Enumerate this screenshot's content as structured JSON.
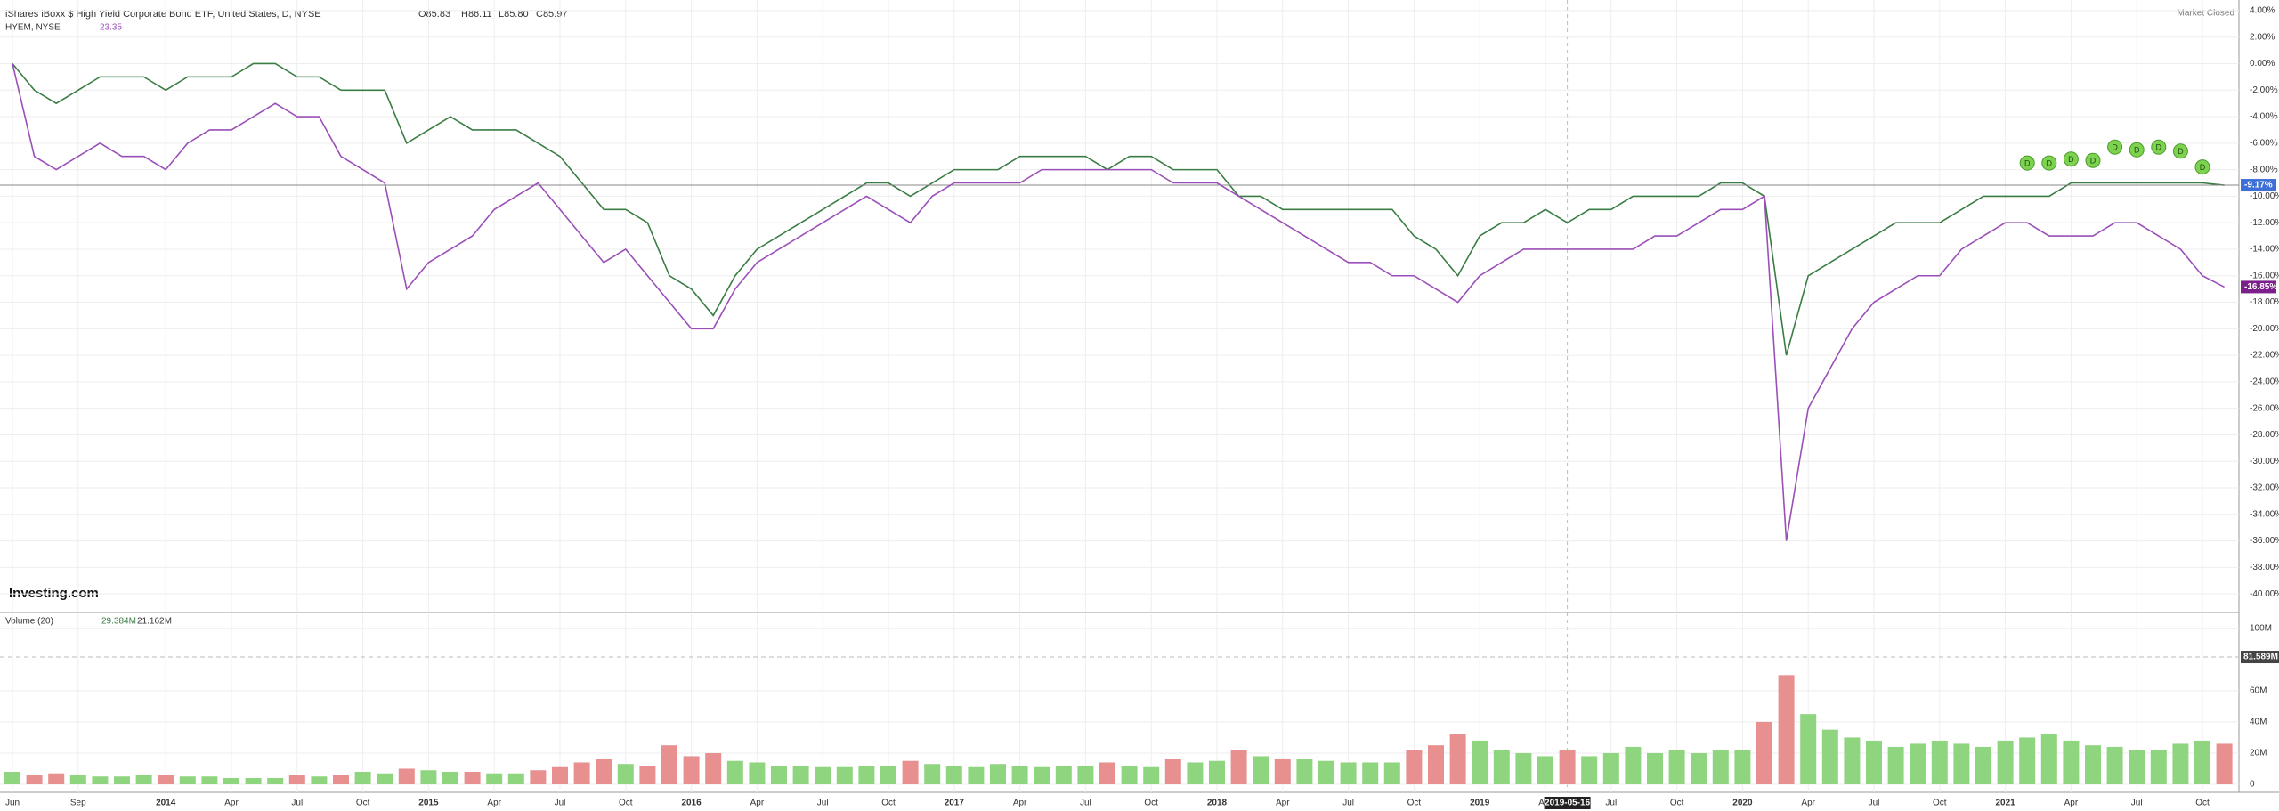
{
  "header": {
    "title": "iShares iBoxx $ High Yield Corporate Bond ETF, United States, D, NYSE",
    "open": "O85.83",
    "high": "H86.11",
    "low": "L85.80",
    "close": "C85.97",
    "compare_name": "HYEM, NYSE",
    "compare_value": "23.35",
    "status": "Market Closed",
    "logo": "Investing.com",
    "crosshair_date": "2019-05-16"
  },
  "chart_data": [
    {
      "type": "line",
      "grid": true,
      "categories": [
        "Jun",
        null,
        null,
        "Sep",
        null,
        null,
        null,
        "2014",
        null,
        null,
        "Apr",
        null,
        null,
        "Jul",
        null,
        null,
        "Oct",
        null,
        null,
        "2015",
        null,
        null,
        "Apr",
        null,
        null,
        "Jul",
        null,
        null,
        "Oct",
        null,
        null,
        "2016",
        null,
        null,
        "Apr",
        null,
        null,
        "Jul",
        null,
        null,
        "Oct",
        null,
        null,
        "2017",
        null,
        null,
        "Apr",
        null,
        null,
        "Jul",
        null,
        null,
        "Oct",
        null,
        null,
        "2018",
        null,
        null,
        "Apr",
        null,
        null,
        "Jul",
        null,
        null,
        "Oct",
        null,
        null,
        "2019",
        null,
        null,
        "Apr",
        null,
        null,
        "Jul",
        null,
        null,
        "Oct",
        null,
        null,
        "2020",
        null,
        null,
        "Apr",
        null,
        null,
        "Jul",
        null,
        null,
        "Oct",
        null,
        null,
        "2021",
        null,
        null,
        "Apr",
        null,
        null,
        "Jul",
        null,
        null,
        "Oct",
        null
      ],
      "ylim": [
        -41.4,
        4.8
      ],
      "yticks": [
        {
          "value": 4,
          "label": "4.00%"
        },
        {
          "value": 2,
          "label": "2.00%"
        },
        {
          "value": 0,
          "label": "0.00%"
        },
        {
          "value": -2,
          "label": "-2.00%"
        },
        {
          "value": -4,
          "label": "-4.00%"
        },
        {
          "value": -6,
          "label": "-6.00%"
        },
        {
          "value": -8,
          "label": "-8.00%"
        },
        {
          "value": -10,
          "label": "-10.00%"
        },
        {
          "value": -12,
          "label": "-12.00%"
        },
        {
          "value": -14,
          "label": "-14.00%"
        },
        {
          "value": -16,
          "label": "-16.00%"
        },
        {
          "value": -18,
          "label": "-18.00%"
        },
        {
          "value": -20,
          "label": "-20.00%"
        },
        {
          "value": -22,
          "label": "-22.00%"
        },
        {
          "value": -24,
          "label": "-24.00%"
        },
        {
          "value": -26,
          "label": "-26.00%"
        },
        {
          "value": -28,
          "label": "-28.00%"
        },
        {
          "value": -30,
          "label": "-30.00%"
        },
        {
          "value": -32,
          "label": "-32.00%"
        },
        {
          "value": -34,
          "label": "-34.00%"
        },
        {
          "value": -36,
          "label": "-36.00%"
        },
        {
          "value": -38,
          "label": "-38.00%"
        },
        {
          "value": -40,
          "label": "-40.00%"
        }
      ],
      "series": [
        {
          "name": "HYG",
          "color": "#3a7d44",
          "last_label": "-9.17%",
          "label_color": "#3d6fd6",
          "values": [
            0,
            -2,
            -3,
            -2,
            -1,
            -1,
            -1,
            -2,
            -1,
            -1,
            -1,
            0,
            0,
            -1,
            -1,
            -2,
            -2,
            -2,
            -6,
            -5,
            -4,
            -5,
            -5,
            -5,
            -6,
            -7,
            -9,
            -11,
            -11,
            -12,
            -16,
            -17,
            -19,
            -16,
            -14,
            -13,
            -12,
            -11,
            -10,
            -9,
            -9,
            -10,
            -9,
            -8,
            -8,
            -8,
            -7,
            -7,
            -7,
            -7,
            -8,
            -7,
            -7,
            -8,
            -8,
            -8,
            -10,
            -10,
            -11,
            -11,
            -11,
            -11,
            -11,
            -11,
            -13,
            -14,
            -16,
            -13,
            -12,
            -12,
            -11,
            -12,
            -11,
            -11,
            -10,
            -10,
            -10,
            -10,
            -9,
            -9,
            -10,
            -22,
            -16,
            -15,
            -14,
            -13,
            -12,
            -12,
            -12,
            -11,
            -10,
            -10,
            -10,
            -10,
            -9,
            -9,
            -9,
            -9,
            -9,
            -9,
            -9,
            -9.17
          ]
        },
        {
          "name": "HYEM",
          "color": "#9b4fb8",
          "last_label": "-16.85%",
          "label_color": "#7b1f8a",
          "values": [
            0,
            -7,
            -8,
            -7,
            -6,
            -7,
            -7,
            -8,
            -6,
            -5,
            -5,
            -4,
            -3,
            -4,
            -4,
            -7,
            -8,
            -9,
            -17,
            -15,
            -14,
            -13,
            -11,
            -10,
            -9,
            -11,
            -13,
            -15,
            -14,
            -16,
            -18,
            -20,
            -20,
            -17,
            -15,
            -14,
            -13,
            -12,
            -11,
            -10,
            -11,
            -12,
            -10,
            -9,
            -9,
            -9,
            -9,
            -8,
            -8,
            -8,
            -8,
            -8,
            -8,
            -9,
            -9,
            -9,
            -10,
            -11,
            -12,
            -13,
            -14,
            -15,
            -15,
            -16,
            -16,
            -17,
            -18,
            -16,
            -15,
            -14,
            -14,
            -14,
            -14,
            -14,
            -14,
            -13,
            -13,
            -12,
            -11,
            -11,
            -10,
            -36,
            -26,
            -23,
            -20,
            -18,
            -17,
            -16,
            -16,
            -14,
            -13,
            -12,
            -12,
            -13,
            -13,
            -13,
            -12,
            -12,
            -13,
            -14,
            -16,
            -16.85
          ]
        }
      ],
      "dividends": {
        "label": "D",
        "color": "#7dd34f",
        "values": [
          null,
          null,
          null,
          null,
          null,
          null,
          null,
          null,
          null,
          null,
          null,
          null,
          null,
          null,
          null,
          null,
          null,
          null,
          null,
          null,
          null,
          null,
          null,
          null,
          null,
          null,
          null,
          null,
          null,
          null,
          null,
          null,
          null,
          null,
          null,
          null,
          null,
          null,
          null,
          null,
          null,
          null,
          null,
          null,
          null,
          null,
          null,
          null,
          null,
          null,
          null,
          null,
          null,
          null,
          null,
          null,
          null,
          null,
          null,
          null,
          null,
          null,
          null,
          null,
          null,
          null,
          null,
          null,
          null,
          null,
          null,
          null,
          null,
          null,
          null,
          null,
          null,
          null,
          null,
          null,
          null,
          null,
          null,
          null,
          null,
          null,
          null,
          null,
          null,
          null,
          null,
          null,
          -7.5,
          -7.5,
          -7.2,
          -7.3,
          -6.3,
          -6.5,
          -6.3,
          -6.6,
          -7.8,
          null
        ]
      }
    },
    {
      "type": "bar",
      "title": "Volume (20)",
      "value_a": "29.384M",
      "value_b": "21.162M",
      "marker_label": "81.589M",
      "marker_value": 81.589,
      "ylim": [
        0,
        105
      ],
      "yticks": [
        {
          "value": 0,
          "label": "0"
        },
        {
          "value": 20,
          "label": "20M"
        },
        {
          "value": 40,
          "label": "40M"
        },
        {
          "value": 60,
          "label": "60M"
        },
        {
          "value": 100,
          "label": "100M"
        }
      ],
      "up_color": "#8fd47f",
      "down_color": "#e88f8f",
      "values": [
        8,
        6,
        7,
        6,
        5,
        5,
        6,
        6,
        5,
        5,
        4,
        4,
        4,
        6,
        5,
        6,
        8,
        7,
        10,
        9,
        8,
        8,
        7,
        7,
        9,
        11,
        14,
        16,
        13,
        12,
        25,
        18,
        20,
        15,
        14,
        12,
        12,
        11,
        11,
        12,
        12,
        15,
        13,
        12,
        11,
        13,
        12,
        11,
        12,
        12,
        14,
        12,
        11,
        16,
        14,
        15,
        22,
        18,
        16,
        16,
        15,
        14,
        14,
        14,
        22,
        25,
        32,
        28,
        22,
        20,
        18,
        22,
        18,
        20,
        24,
        20,
        22,
        20,
        22,
        22,
        40,
        70,
        45,
        35,
        30,
        28,
        24,
        26,
        28,
        26,
        24,
        28,
        30,
        32,
        28,
        25,
        24,
        22,
        22,
        26,
        28,
        26
      ]
    }
  ]
}
